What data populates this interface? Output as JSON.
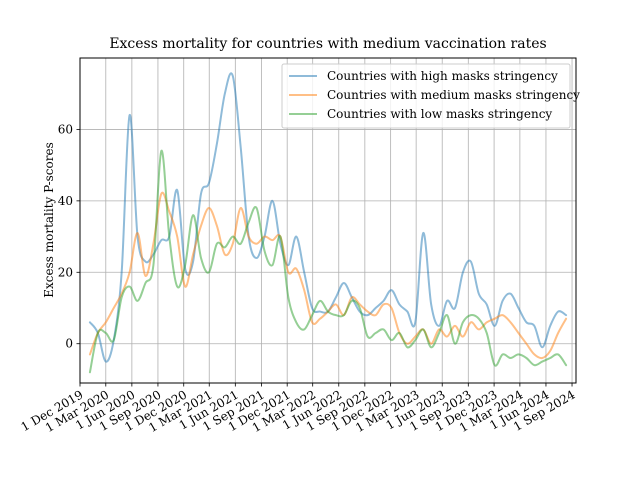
{
  "chart_data": {
    "type": "line",
    "title": "Excess mortality for countries with medium vaccination rates",
    "xlabel": "",
    "ylabel": "Excess mortality P-scores",
    "x_ticks": [
      "1 Dec 2019",
      "1 Mar 2020",
      "1 Jun 2020",
      "1 Sep 2020",
      "1 Dec 2020",
      "1 Mar 2021",
      "1 Jun 2021",
      "1 Sep 2021",
      "1 Dec 2021",
      "1 Mar 2022",
      "1 Jun 2022",
      "1 Sep 2022",
      "1 Dec 2022",
      "1 Mar 2023",
      "1 Jun 2023",
      "1 Sep 2023",
      "1 Dec 2023",
      "1 Mar 2024",
      "1 Jun 2024",
      "1 Sep 2024"
    ],
    "y_ticks": [
      0,
      20,
      40,
      60
    ],
    "xlim": [
      "2019-12-01",
      "2024-09-15"
    ],
    "ylim": [
      -11,
      80
    ],
    "grid": true,
    "legend_position": "top-right",
    "x": [
      "2020-01-05",
      "2020-02-02",
      "2020-03-01",
      "2020-03-29",
      "2020-04-26",
      "2020-05-24",
      "2020-06-21",
      "2020-07-19",
      "2020-08-16",
      "2020-09-13",
      "2020-10-11",
      "2020-11-08",
      "2020-12-06",
      "2021-01-03",
      "2021-01-31",
      "2021-02-28",
      "2021-03-28",
      "2021-04-25",
      "2021-05-23",
      "2021-06-20",
      "2021-07-18",
      "2021-08-15",
      "2021-09-12",
      "2021-10-10",
      "2021-11-07",
      "2021-12-05",
      "2022-01-02",
      "2022-01-30",
      "2022-02-27",
      "2022-03-27",
      "2022-04-24",
      "2022-05-22",
      "2022-06-19",
      "2022-07-17",
      "2022-08-14",
      "2022-09-11",
      "2022-10-09",
      "2022-11-06",
      "2022-12-04",
      "2023-01-01",
      "2023-01-29",
      "2023-02-26",
      "2023-03-26",
      "2023-04-23",
      "2023-05-21",
      "2023-06-18",
      "2023-07-16",
      "2023-08-13",
      "2023-09-10",
      "2023-10-08",
      "2023-11-05",
      "2023-12-03",
      "2023-12-31",
      "2024-01-28",
      "2024-02-25",
      "2024-03-24",
      "2024-04-21",
      "2024-05-19",
      "2024-06-16",
      "2024-07-14",
      "2024-08-11"
    ],
    "series": [
      {
        "name": "Countries with high  masks stringency",
        "color": "#1f77b4",
        "values": [
          6,
          3,
          -5,
          1,
          20,
          64,
          30,
          23,
          25,
          29,
          30,
          43,
          21,
          23,
          42,
          45,
          56,
          70,
          75,
          55,
          30,
          24,
          30,
          40,
          28,
          22,
          30,
          20,
          10,
          9,
          9,
          13,
          17,
          13,
          9,
          8,
          10,
          12,
          15,
          11,
          9,
          6,
          31,
          11,
          5,
          12,
          10,
          20,
          23,
          14,
          11,
          5,
          12,
          14,
          10,
          6,
          5,
          -1,
          5,
          9,
          8
        ],
        "ordinal_x": true
      },
      {
        "name": "Countries with medium  masks stringency",
        "color": "#ff7f0e",
        "values": [
          -3,
          3,
          6,
          10,
          14,
          20,
          31,
          19,
          28,
          42,
          37,
          30,
          16,
          25,
          33,
          38,
          33,
          25,
          28,
          38,
          30,
          28,
          30,
          29,
          30,
          20,
          21,
          15,
          6,
          7,
          9,
          11,
          8,
          13,
          11,
          9,
          8,
          11,
          10,
          3,
          0,
          2,
          4,
          0,
          4,
          2,
          5,
          2,
          6,
          4,
          6,
          7,
          8,
          6,
          3,
          0,
          -3,
          -4,
          -2,
          3,
          7
        ],
        "ordinal_x": true
      },
      {
        "name": "Countries with low masks stringency",
        "color": "#2ca02c",
        "values": [
          -8,
          3,
          3,
          1,
          13,
          16,
          12,
          17,
          22,
          54,
          30,
          16,
          22,
          36,
          24,
          20,
          28,
          27,
          30,
          28,
          34,
          38,
          26,
          22,
          30,
          13,
          6,
          4,
          8,
          12,
          9,
          8,
          8,
          12,
          10,
          2,
          3,
          4,
          1,
          3,
          -1,
          1,
          4,
          -1,
          3,
          8,
          0,
          6,
          8,
          7,
          3,
          -6,
          -3,
          -4,
          -3,
          -4,
          -6,
          -5,
          -4,
          -3,
          -6
        ],
        "ordinal_x": true
      }
    ]
  }
}
